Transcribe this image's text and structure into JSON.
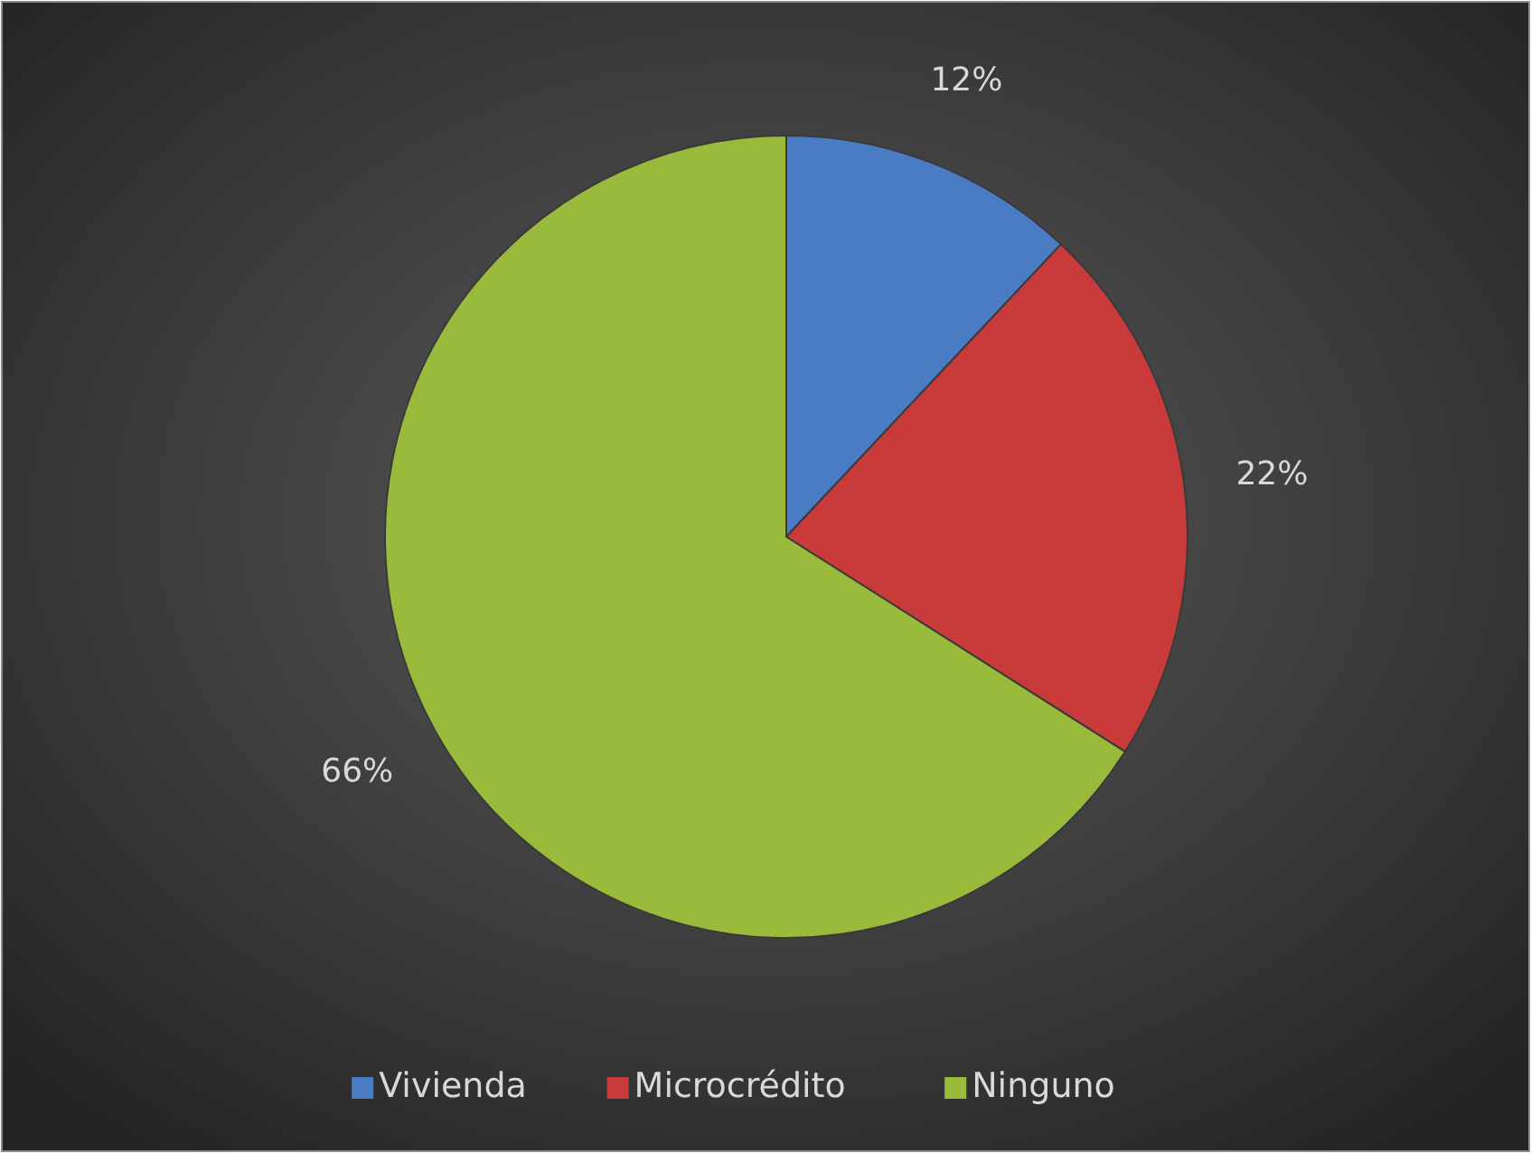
{
  "chart_data": {
    "type": "pie",
    "categories": [
      "Vivienda",
      "Microcrédito",
      "Ninguno"
    ],
    "values": [
      12,
      22,
      66
    ],
    "colors": [
      "#4a7cc4",
      "#c83b3a",
      "#9aba3c"
    ],
    "value_labels": [
      "12%",
      "22%",
      "66%"
    ],
    "legend": "bottom"
  }
}
